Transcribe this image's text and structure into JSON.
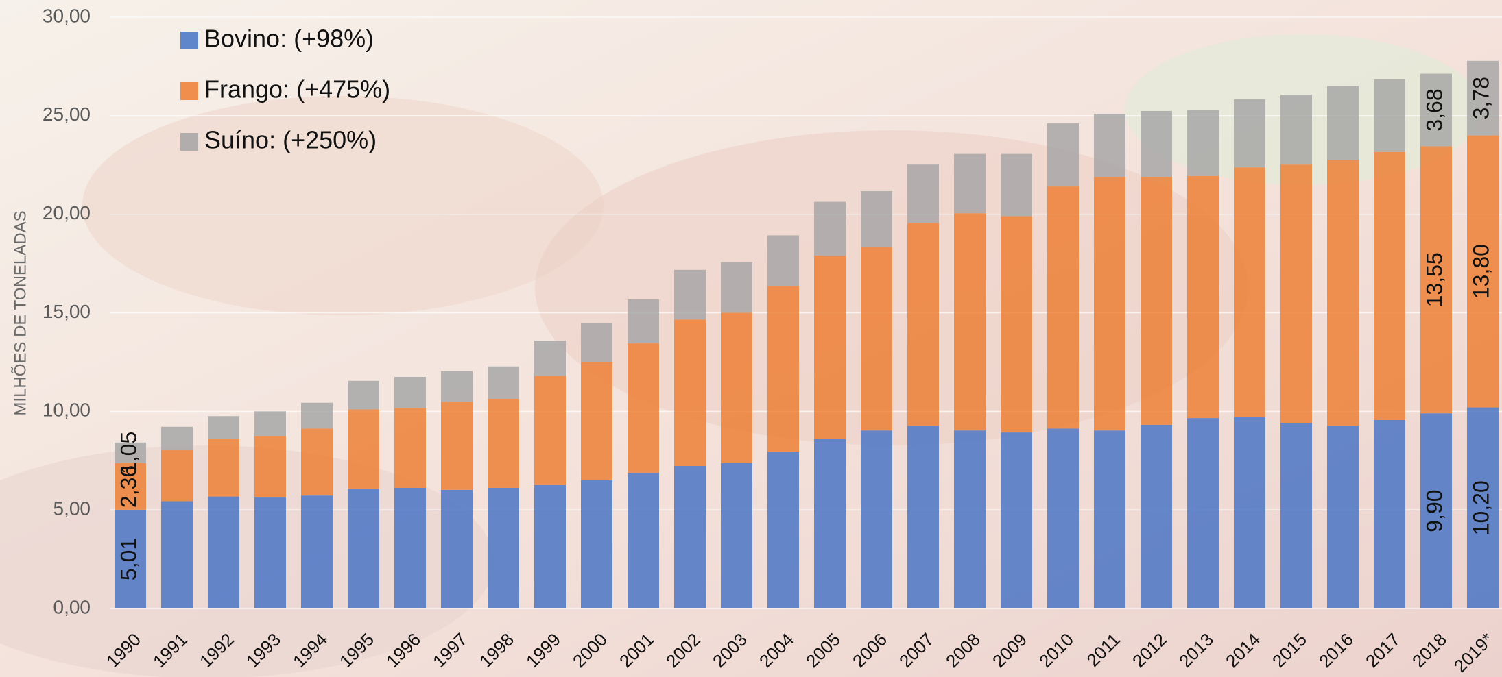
{
  "chart_data": {
    "type": "stacked_bar",
    "y_label": "MILHÕES DE TONELADAS",
    "categories": [
      "1990",
      "1991",
      "1992",
      "1993",
      "1994",
      "1995",
      "1996",
      "1997",
      "1998",
      "1999",
      "2000",
      "2001",
      "2002",
      "2003",
      "2004",
      "2005",
      "2006",
      "2007",
      "2008",
      "2009",
      "2010",
      "2011",
      "2012",
      "2013",
      "2014",
      "2015",
      "2016",
      "2017",
      "2018",
      "2019*"
    ],
    "series": [
      {
        "name": "Bovino: (+98%)",
        "color": "#4472c4",
        "values": [
          5.01,
          5.44,
          5.68,
          5.63,
          5.73,
          6.07,
          6.12,
          6.02,
          6.12,
          6.26,
          6.5,
          6.89,
          7.23,
          7.38,
          7.96,
          8.59,
          9.03,
          9.27,
          9.03,
          8.93,
          9.13,
          9.03,
          9.32,
          9.66,
          9.71,
          9.42,
          9.27,
          9.56,
          9.9,
          10.2
        ],
        "value_labels": [
          "5,01",
          null,
          null,
          null,
          null,
          null,
          null,
          null,
          null,
          null,
          null,
          null,
          null,
          null,
          null,
          null,
          null,
          null,
          null,
          null,
          null,
          null,
          null,
          null,
          null,
          null,
          null,
          null,
          "9,90",
          "10,20"
        ]
      },
      {
        "name": "Frango: (+475%)",
        "color": "#ed7d31",
        "values": [
          2.36,
          2.62,
          2.91,
          3.11,
          3.4,
          4.03,
          4.03,
          4.47,
          4.51,
          5.54,
          5.98,
          6.56,
          7.43,
          7.62,
          8.4,
          9.32,
          9.32,
          10.29,
          11.02,
          10.97,
          12.28,
          12.86,
          12.57,
          12.28,
          12.67,
          13.1,
          13.5,
          13.6,
          13.55,
          13.8
        ],
        "value_labels": [
          "2,36",
          null,
          null,
          null,
          null,
          null,
          null,
          null,
          null,
          null,
          null,
          null,
          null,
          null,
          null,
          null,
          null,
          null,
          null,
          null,
          null,
          null,
          null,
          null,
          null,
          null,
          null,
          null,
          "13,55",
          "13,80"
        ]
      },
      {
        "name": "Suíno: (+250%)",
        "color": "#a5a5a5",
        "values": [
          1.05,
          1.16,
          1.17,
          1.26,
          1.31,
          1.45,
          1.6,
          1.55,
          1.65,
          1.79,
          1.99,
          2.23,
          2.52,
          2.57,
          2.57,
          2.72,
          2.82,
          2.96,
          3.01,
          3.16,
          3.2,
          3.21,
          3.35,
          3.35,
          3.45,
          3.55,
          3.73,
          3.68,
          3.68,
          3.78
        ],
        "value_labels": [
          "1,05",
          null,
          null,
          null,
          null,
          null,
          null,
          null,
          null,
          null,
          null,
          null,
          null,
          null,
          null,
          null,
          null,
          null,
          null,
          null,
          null,
          null,
          null,
          null,
          null,
          null,
          null,
          null,
          "3,68",
          "3,78"
        ]
      }
    ],
    "ylim": [
      0,
      30
    ],
    "yticks": [
      {
        "value": 0,
        "label": "0,00"
      },
      {
        "value": 5,
        "label": "5,00"
      },
      {
        "value": 10,
        "label": "10,00"
      },
      {
        "value": 15,
        "label": "15,00"
      },
      {
        "value": 20,
        "label": "20,00"
      },
      {
        "value": 25,
        "label": "25,00"
      },
      {
        "value": 30,
        "label": "30,00"
      }
    ],
    "grid": true,
    "legend": "top-left"
  }
}
